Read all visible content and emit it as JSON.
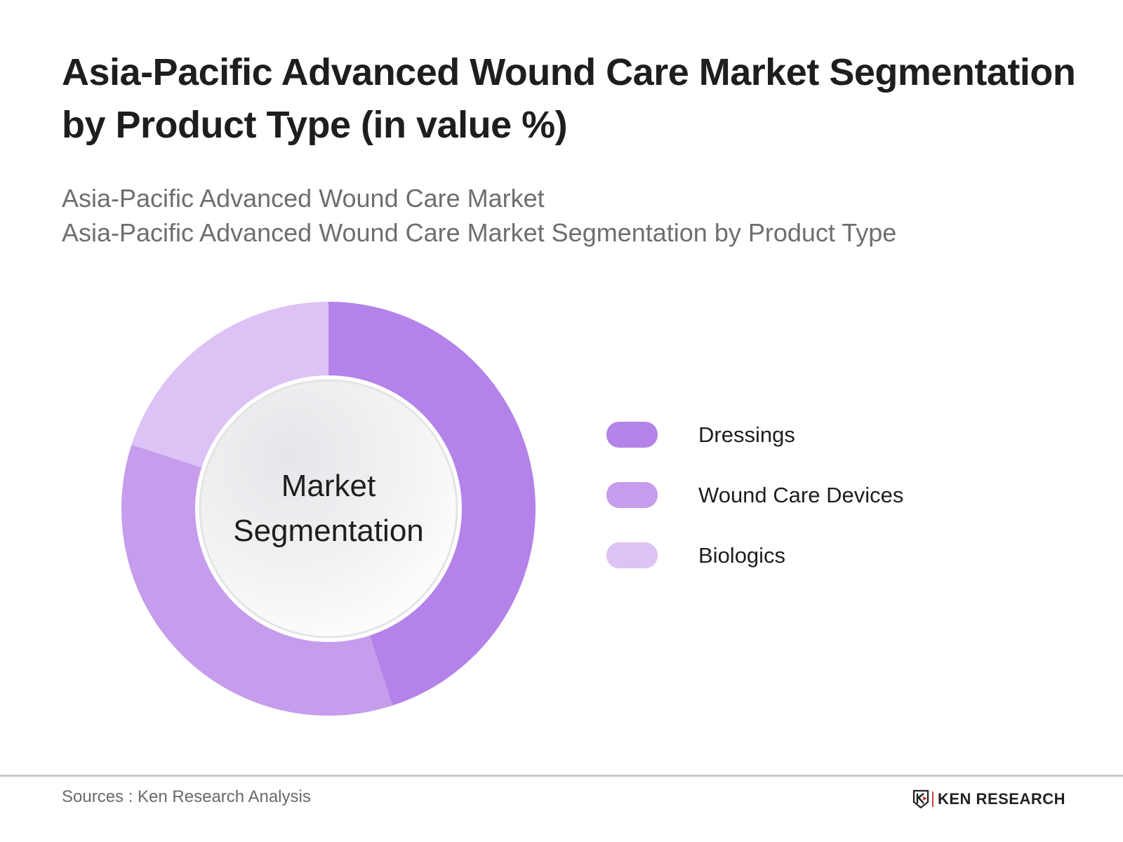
{
  "header": {
    "title_line1": "Asia-Pacific Advanced Wound Care Market Segmentation",
    "title_line2": "by Product Type (in value %)",
    "subtitle_line1": "Asia-Pacific Advanced Wound Care Market",
    "subtitle_line2": "Asia-Pacific Advanced Wound Care Market Segmentation by Product Type"
  },
  "chart": {
    "center_label_line1": "Market",
    "center_label_line2": "Segmentation"
  },
  "legend": {
    "items": [
      {
        "label": "Dressings",
        "color": "#B383E9"
      },
      {
        "label": "Wound Care Devices",
        "color": "#C59DEC"
      },
      {
        "label": "Biologics",
        "color": "#DCC2F5"
      }
    ]
  },
  "footer": {
    "source": "Sources : Ken Research Analysis",
    "logo_text": "KEN RESEARCH",
    "logo_icon": "k-shield-icon"
  },
  "chart_data": {
    "type": "pie",
    "subtype": "donut",
    "title": "Asia-Pacific Advanced Wound Care Market Segmentation by Product Type (in value %)",
    "subtitle": "Asia-Pacific Advanced Wound Care Market / Asia-Pacific Advanced Wound Care Market Segmentation by Product Type",
    "center_text": "Market Segmentation",
    "categories": [
      "Dressings",
      "Wound Care Devices",
      "Biologics"
    ],
    "values": [
      45,
      35,
      20
    ],
    "colors": [
      "#B383E9",
      "#C59DEC",
      "#DCC2F5"
    ],
    "unit": "%",
    "start_angle": "12 o'clock, clockwise",
    "legend_position": "right",
    "data_labels": false,
    "source": "Sources : Ken Research Analysis"
  }
}
